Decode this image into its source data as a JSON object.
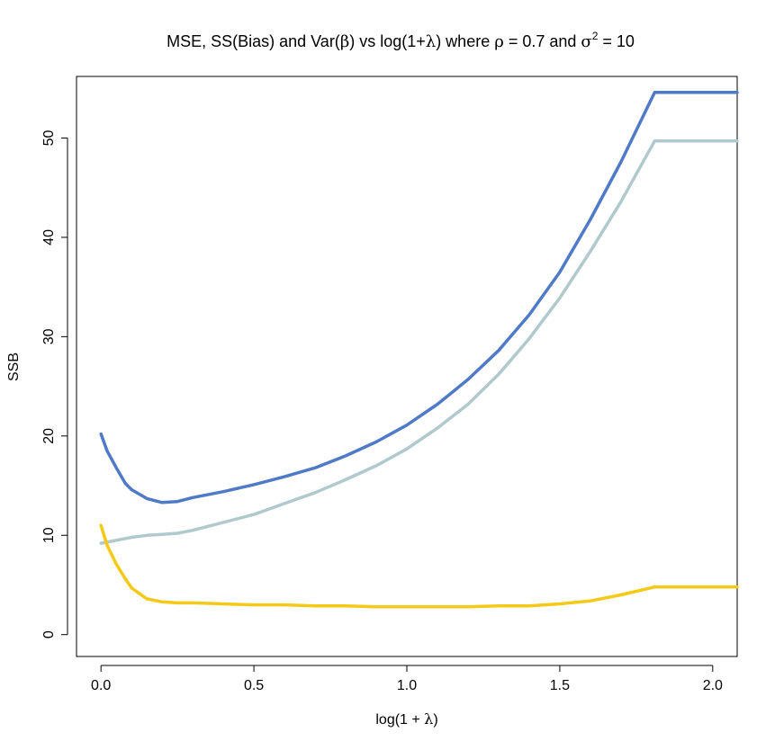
{
  "chart_data": {
    "type": "line",
    "title_parts": {
      "pre": "MSE, SS(Bias) and Var(",
      "beta": "β",
      "mid1": ") vs log(1+",
      "lambda": "λ",
      "mid2": ") where ",
      "rho": "ρ",
      "mid3": " = 0.7 and ",
      "sigma": "σ",
      "sup": "2",
      "post": " = 10"
    },
    "xlabel_parts": {
      "pre": "log(1 + ",
      "lambda": "λ",
      "post": ")"
    },
    "ylabel": "SSB",
    "xlim": [
      -0.08,
      2.08
    ],
    "ylim": [
      -2.2,
      56.2
    ],
    "x_ticks": [
      0,
      0.5,
      1,
      1.5,
      2
    ],
    "x_tick_labels": [
      "0.0",
      "0.5",
      "1.0",
      "1.5",
      "2.0"
    ],
    "y_ticks": [
      0,
      10,
      20,
      30,
      40,
      50
    ],
    "y_tick_labels": [
      "0",
      "10",
      "20",
      "30",
      "40",
      "50"
    ],
    "grid": false,
    "legend": "none",
    "series": [
      {
        "color": "#4f7ac7",
        "x": [
          0.0,
          0.02,
          0.05,
          0.08,
          0.1,
          0.15,
          0.2,
          0.25,
          0.3,
          0.4,
          0.5,
          0.6,
          0.7,
          0.8,
          0.9,
          1.0,
          1.1,
          1.2,
          1.3,
          1.4,
          1.5,
          1.6,
          1.7,
          1.81,
          1.9,
          2.0,
          2.08
        ],
        "y": [
          20.2,
          18.5,
          16.8,
          15.2,
          14.6,
          13.7,
          13.3,
          13.4,
          13.8,
          14.4,
          15.1,
          15.9,
          16.8,
          18.0,
          19.4,
          21.1,
          23.2,
          25.7,
          28.6,
          32.2,
          36.5,
          41.8,
          47.6,
          54.6,
          54.6,
          54.6,
          54.6
        ]
      },
      {
        "color": "#b0c9cc",
        "x": [
          0.0,
          0.05,
          0.1,
          0.15,
          0.2,
          0.25,
          0.3,
          0.4,
          0.5,
          0.6,
          0.7,
          0.8,
          0.9,
          1.0,
          1.1,
          1.2,
          1.3,
          1.4,
          1.5,
          1.6,
          1.7,
          1.81,
          1.9,
          2.0,
          2.08
        ],
        "y": [
          9.2,
          9.5,
          9.8,
          10.0,
          10.1,
          10.2,
          10.5,
          11.3,
          12.1,
          13.2,
          14.3,
          15.6,
          17.0,
          18.7,
          20.8,
          23.2,
          26.2,
          29.8,
          33.9,
          38.6,
          43.6,
          49.7,
          49.7,
          49.7,
          49.7
        ]
      },
      {
        "color": "#f5c918",
        "x": [
          0.0,
          0.02,
          0.05,
          0.08,
          0.1,
          0.15,
          0.2,
          0.25,
          0.3,
          0.4,
          0.5,
          0.6,
          0.7,
          0.8,
          0.9,
          1.0,
          1.1,
          1.2,
          1.3,
          1.4,
          1.5,
          1.6,
          1.7,
          1.81,
          1.9,
          2.0,
          2.08
        ],
        "y": [
          11.0,
          9.0,
          7.1,
          5.6,
          4.7,
          3.6,
          3.3,
          3.2,
          3.2,
          3.1,
          3.0,
          3.0,
          2.9,
          2.9,
          2.8,
          2.8,
          2.8,
          2.8,
          2.9,
          2.9,
          3.1,
          3.4,
          4.0,
          4.8,
          4.8,
          4.8,
          4.8
        ]
      }
    ]
  }
}
